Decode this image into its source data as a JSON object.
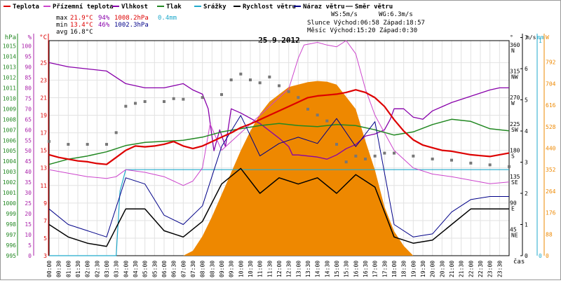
{
  "chart_data": {
    "type": "line",
    "title": "25.9.2012",
    "time_axis_label": "čas",
    "x_ticks": [
      "00:00",
      "00:30",
      "01:00",
      "01:30",
      "02:00",
      "02:30",
      "03:00",
      "03:30",
      "04:00",
      "04:30",
      "05:00",
      "05:30",
      "06:00",
      "06:30",
      "07:00",
      "07:30",
      "08:00",
      "08:30",
      "09:00",
      "09:30",
      "10:00",
      "10:30",
      "11:00",
      "11:30",
      "12:00",
      "12:30",
      "13:00",
      "13:30",
      "14:00",
      "14:30",
      "15:00",
      "15:30",
      "16:00",
      "16:30",
      "17:00",
      "17:30",
      "18:00",
      "18:30",
      "19:00",
      "19:30",
      "20:00",
      "20:30",
      "21:00",
      "21:30",
      "22:00",
      "22:30",
      "23:00",
      "23:30"
    ],
    "grid": true,
    "legend_position": "top",
    "legend": [
      {
        "label": "Teplota",
        "color": "#dd0000"
      },
      {
        "label": "Přízemní teplota",
        "color": "#cc44cc"
      },
      {
        "label": "Vlhkost",
        "color": "#8800aa"
      },
      {
        "label": "Tlak",
        "color": "#228822"
      },
      {
        "label": "Srážky",
        "color": "#22aacc"
      },
      {
        "label": "Rychlost větru",
        "color": "#000000"
      },
      {
        "label": "Náraz větru",
        "color": "#000088"
      },
      {
        "label": "Směr větru",
        "color": "#777777"
      }
    ],
    "stats": {
      "max_label": "max",
      "max_temp": "21.9°C",
      "max_hum": "94%",
      "max_press": "1008.2hPa",
      "max_rain": "0.4mm",
      "min_label": "min",
      "min_temp": "13.4°C",
      "min_hum": "46%",
      "min_press": "1002.3hPa",
      "avg_label": "avg",
      "avg_temp": "16.8°C",
      "ws": "WS:5m/s",
      "wg": "WG:6.3m/s",
      "sun": "Slunce Východ:06:58  Západ:18:57",
      "moon": "Měsíc  Východ:15:20  Západ:0:30"
    },
    "axes": {
      "hpa": {
        "unit": "hPa",
        "color": "#228822",
        "ticks": [
          "995",
          "996",
          "997",
          "998",
          "999",
          "1000",
          "1001",
          "1002",
          "1003",
          "1004",
          "1005",
          "1006",
          "1007",
          "1008",
          "1009",
          "1010",
          "1011",
          "1012",
          "1013",
          "1014",
          "1015"
        ],
        "range": [
          995,
          1015.5
        ]
      },
      "pct": {
        "unit": "%",
        "color": "#aa22aa",
        "ticks": [
          "0",
          "5",
          "10",
          "15",
          "20",
          "25",
          "30",
          "35",
          "40",
          "45",
          "50",
          "55",
          "60",
          "65",
          "70",
          "75",
          "80",
          "85",
          "90",
          "95",
          "100"
        ],
        "range": [
          0,
          102.5
        ]
      },
      "temp": {
        "unit": "°C",
        "color": "#dd0000",
        "ticks": [
          "3",
          "5",
          "7",
          "9",
          "11",
          "13",
          "15",
          "17",
          "19",
          "21",
          "23",
          "25"
        ],
        "range": [
          3,
          27.5
        ]
      },
      "dir": {
        "unit": "°",
        "ticks": [
          {
            "v": 45,
            "t": "45",
            "n": "NE"
          },
          {
            "v": 90,
            "t": "90",
            "n": "E"
          },
          {
            "v": 135,
            "t": "135",
            "n": "SE"
          },
          {
            "v": 180,
            "t": "180",
            "n": "S"
          },
          {
            "v": 225,
            "t": "225",
            "n": "SW"
          },
          {
            "v": 270,
            "t": "270",
            "n": "W"
          },
          {
            "v": 315,
            "t": "315",
            "n": "NW"
          },
          {
            "v": 360,
            "t": "360",
            "n": "N"
          }
        ],
        "range": [
          0,
          367
        ]
      },
      "wind": {
        "unit": "m/s",
        "ticks": [
          "0",
          "1",
          "2",
          "3",
          "4",
          "5",
          "6",
          "7"
        ],
        "range": [
          0,
          6.9
        ]
      },
      "rain": {
        "unit": "mm",
        "color": "#22aacc",
        "ticks": [
          "0",
          "1"
        ],
        "range": [
          0,
          1
        ]
      },
      "solar": {
        "unit": "W",
        "color": "#ee8800",
        "ticks": [
          "0",
          "88",
          "176",
          "264",
          "352",
          "440",
          "528",
          "616",
          "704",
          "792"
        ],
        "range": [
          0,
          880
        ]
      }
    },
    "series": {
      "temperature": [
        [
          0,
          14.5
        ],
        [
          0.5,
          14.2
        ],
        [
          1,
          14.0
        ],
        [
          1.5,
          13.8
        ],
        [
          2,
          13.7
        ],
        [
          2.5,
          13.5
        ],
        [
          3,
          13.4
        ],
        [
          3.5,
          14.2
        ],
        [
          4,
          15.0
        ],
        [
          4.5,
          15.5
        ],
        [
          5,
          15.4
        ],
        [
          5.5,
          15.5
        ],
        [
          6,
          15.7
        ],
        [
          6.5,
          16.0
        ],
        [
          7,
          15.5
        ],
        [
          7.5,
          15.2
        ],
        [
          8,
          15.5
        ],
        [
          8.5,
          16.0
        ],
        [
          9,
          16.5
        ],
        [
          9.5,
          17.0
        ],
        [
          10,
          17.6
        ],
        [
          10.5,
          18.0
        ],
        [
          11,
          18.5
        ],
        [
          11.5,
          19.0
        ],
        [
          12,
          19.5
        ],
        [
          12.5,
          20.0
        ],
        [
          13,
          20.5
        ],
        [
          13.5,
          21.0
        ],
        [
          14,
          21.2
        ],
        [
          14.5,
          21.3
        ],
        [
          15,
          21.4
        ],
        [
          15.5,
          21.6
        ],
        [
          16,
          21.9
        ],
        [
          16.5,
          21.6
        ],
        [
          17,
          21.0
        ],
        [
          17.5,
          20.0
        ],
        [
          18,
          18.5
        ],
        [
          18.5,
          17.2
        ],
        [
          19,
          16.2
        ],
        [
          19.5,
          15.6
        ],
        [
          20,
          15.3
        ],
        [
          20.5,
          15.0
        ],
        [
          21,
          14.9
        ],
        [
          21.5,
          14.7
        ],
        [
          22,
          14.5
        ],
        [
          22.5,
          14.4
        ],
        [
          23,
          14.3
        ],
        [
          23.5,
          14.5
        ],
        [
          24,
          14.7
        ]
      ],
      "ground_temperature": [
        [
          0,
          12.8
        ],
        [
          1,
          12.4
        ],
        [
          2,
          12.0
        ],
        [
          3,
          11.8
        ],
        [
          3.5,
          12.0
        ],
        [
          4,
          12.8
        ],
        [
          5,
          12.5
        ],
        [
          6,
          12.0
        ],
        [
          6.5,
          11.5
        ],
        [
          7,
          11.0
        ],
        [
          7.5,
          11.5
        ],
        [
          8,
          13.0
        ],
        [
          8.4,
          18.0
        ],
        [
          8.8,
          16.0
        ],
        [
          9,
          15.0
        ],
        [
          10,
          17.0
        ],
        [
          11,
          19.0
        ],
        [
          12,
          21.0
        ],
        [
          12.5,
          22.0
        ],
        [
          13,
          25.5
        ],
        [
          13.3,
          27.0
        ],
        [
          14,
          27.3
        ],
        [
          14.5,
          27.0
        ],
        [
          15,
          26.8
        ],
        [
          15.5,
          27.5
        ],
        [
          16,
          26.0
        ],
        [
          16.5,
          22.0
        ],
        [
          17,
          19.0
        ],
        [
          17.5,
          17.0
        ],
        [
          18,
          15.0
        ],
        [
          19,
          13.0
        ],
        [
          20,
          12.3
        ],
        [
          21,
          12.0
        ],
        [
          22,
          11.6
        ],
        [
          23,
          11.2
        ],
        [
          24,
          11.4
        ]
      ],
      "humidity": [
        [
          0,
          92
        ],
        [
          1,
          90
        ],
        [
          2,
          89
        ],
        [
          3,
          88
        ],
        [
          4,
          82
        ],
        [
          5,
          80
        ],
        [
          6,
          80
        ],
        [
          7,
          82
        ],
        [
          7.5,
          79
        ],
        [
          8,
          77
        ],
        [
          8.3,
          70
        ],
        [
          8.6,
          50
        ],
        [
          8.9,
          60
        ],
        [
          9.2,
          52
        ],
        [
          9.5,
          70
        ],
        [
          10,
          68
        ],
        [
          11,
          63
        ],
        [
          12,
          56
        ],
        [
          12.5,
          52
        ],
        [
          12.7,
          48
        ],
        [
          13,
          48
        ],
        [
          14,
          47
        ],
        [
          14.5,
          46
        ],
        [
          15,
          48
        ],
        [
          15.5,
          51
        ],
        [
          16,
          53
        ],
        [
          16.5,
          57
        ],
        [
          17,
          58
        ],
        [
          17.5,
          60
        ],
        [
          17.8,
          65
        ],
        [
          18,
          70
        ],
        [
          18.5,
          70
        ],
        [
          19,
          66
        ],
        [
          19.5,
          65
        ],
        [
          20,
          69
        ],
        [
          21,
          73
        ],
        [
          22,
          76
        ],
        [
          23,
          79
        ],
        [
          23.5,
          80
        ],
        [
          24,
          80
        ]
      ],
      "pressure": [
        [
          0,
          1003.7
        ],
        [
          1,
          1004.2
        ],
        [
          2,
          1004.5
        ],
        [
          3,
          1004.9
        ],
        [
          4,
          1005.5
        ],
        [
          5,
          1005.8
        ],
        [
          6,
          1005.9
        ],
        [
          7,
          1006.0
        ],
        [
          8,
          1006.3
        ],
        [
          9,
          1006.8
        ],
        [
          10,
          1007.1
        ],
        [
          11,
          1007.4
        ],
        [
          12,
          1007.6
        ],
        [
          13,
          1007.4
        ],
        [
          14,
          1007.3
        ],
        [
          15,
          1007.5
        ],
        [
          16,
          1007.4
        ],
        [
          17,
          1007.0
        ],
        [
          18,
          1006.5
        ],
        [
          19,
          1006.8
        ],
        [
          20,
          1007.5
        ],
        [
          21,
          1008.0
        ],
        [
          22,
          1007.8
        ],
        [
          23,
          1007.1
        ],
        [
          24,
          1006.9
        ]
      ],
      "rain_total": [
        [
          0,
          0
        ],
        [
          3.5,
          0
        ],
        [
          3.7,
          0.3
        ],
        [
          4,
          0.4
        ],
        [
          24,
          0.4
        ]
      ],
      "wind_direction": [
        [
          0,
          195
        ],
        [
          1,
          190
        ],
        [
          2,
          190
        ],
        [
          3,
          190
        ],
        [
          3.5,
          210
        ],
        [
          4,
          255
        ],
        [
          4.5,
          260
        ],
        [
          5,
          263
        ],
        [
          6,
          263
        ],
        [
          6.5,
          268
        ],
        [
          7,
          267
        ],
        [
          8,
          270
        ],
        [
          9,
          275
        ],
        [
          9.5,
          300
        ],
        [
          10,
          310
        ],
        [
          10.5,
          300
        ],
        [
          11,
          295
        ],
        [
          11.5,
          305
        ],
        [
          12,
          290
        ],
        [
          12.5,
          280
        ],
        [
          13,
          270
        ],
        [
          13.5,
          250
        ],
        [
          14,
          240
        ],
        [
          14.5,
          230
        ],
        [
          15,
          190
        ],
        [
          15.5,
          160
        ],
        [
          16,
          170
        ],
        [
          16.5,
          165
        ],
        [
          17,
          170
        ],
        [
          17.5,
          175
        ],
        [
          18,
          175
        ],
        [
          19,
          170
        ],
        [
          20,
          165
        ],
        [
          21,
          163
        ],
        [
          22,
          158
        ],
        [
          23,
          155
        ],
        [
          24,
          152
        ]
      ],
      "solar_radiation": [
        [
          0,
          0
        ],
        [
          7,
          0
        ],
        [
          7.5,
          20
        ],
        [
          8,
          80
        ],
        [
          8.5,
          160
        ],
        [
          9,
          250
        ],
        [
          9.5,
          340
        ],
        [
          10,
          430
        ],
        [
          10.5,
          510
        ],
        [
          11,
          580
        ],
        [
          11.5,
          630
        ],
        [
          12,
          660
        ],
        [
          12.5,
          690
        ],
        [
          13,
          700
        ],
        [
          13.5,
          710
        ],
        [
          14,
          715
        ],
        [
          14.5,
          712
        ],
        [
          15,
          700
        ],
        [
          15.5,
          650
        ],
        [
          16,
          600
        ],
        [
          16.5,
          470
        ],
        [
          17,
          350
        ],
        [
          17.5,
          200
        ],
        [
          18,
          100
        ],
        [
          18.5,
          40
        ],
        [
          19,
          0
        ],
        [
          24,
          0
        ]
      ],
      "wind_speed_avg": [
        [
          0,
          1.0
        ],
        [
          1,
          0.6
        ],
        [
          2,
          0.4
        ],
        [
          3,
          0.3
        ],
        [
          4,
          1.5
        ],
        [
          5,
          1.5
        ],
        [
          6,
          0.8
        ],
        [
          7,
          0.6
        ],
        [
          8,
          1.1
        ],
        [
          9,
          2.3
        ],
        [
          10,
          2.8
        ],
        [
          11,
          2.0
        ],
        [
          12,
          2.5
        ],
        [
          13,
          2.3
        ],
        [
          14,
          2.5
        ],
        [
          15,
          2.0
        ],
        [
          16,
          2.6
        ],
        [
          17,
          2.2
        ],
        [
          18,
          0.6
        ],
        [
          19,
          0.4
        ],
        [
          20,
          0.5
        ],
        [
          21,
          1.0
        ],
        [
          22,
          1.5
        ],
        [
          23,
          1.5
        ],
        [
          24,
          1.5
        ]
      ],
      "wind_gust": [
        [
          0,
          1.5
        ],
        [
          1,
          1.0
        ],
        [
          2,
          0.8
        ],
        [
          3,
          0.6
        ],
        [
          4,
          2.5
        ],
        [
          5,
          2.3
        ],
        [
          6,
          1.3
        ],
        [
          7,
          1.0
        ],
        [
          8,
          1.6
        ],
        [
          9,
          3.5
        ],
        [
          10,
          4.5
        ],
        [
          11,
          3.2
        ],
        [
          12,
          3.6
        ],
        [
          13,
          3.8
        ],
        [
          14,
          3.6
        ],
        [
          15,
          4.4
        ],
        [
          16,
          3.5
        ],
        [
          17,
          4.3
        ],
        [
          18,
          1.0
        ],
        [
          19,
          0.6
        ],
        [
          20,
          0.7
        ],
        [
          21,
          1.4
        ],
        [
          22,
          1.8
        ],
        [
          23,
          1.9
        ],
        [
          24,
          1.9
        ]
      ]
    }
  }
}
